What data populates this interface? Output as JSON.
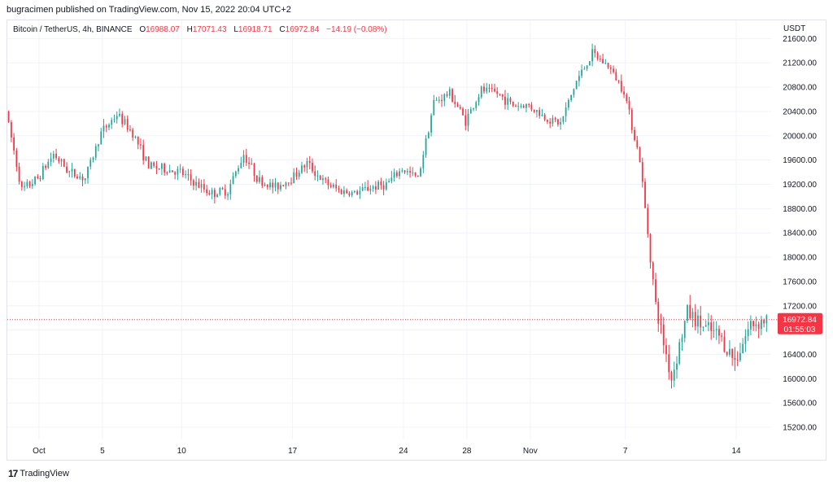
{
  "header": {
    "published_text": "bugracimen published on TradingView.com, Nov 15, 2022 20:04 UTC+2"
  },
  "legend": {
    "symbol": "Bitcoin / TetherUS, 4h, BINANCE",
    "open_label": "O",
    "open": "16988.07",
    "high_label": "H",
    "high": "17071.43",
    "low_label": "L",
    "low": "16918.71",
    "close_label": "C",
    "close": "16972.84",
    "change": "−14.19 (−0.08%)"
  },
  "footer": {
    "brand": "TradingView"
  },
  "colors": {
    "up": "#26a69a",
    "down": "#f23645",
    "grid": "#f0f3fa",
    "axis_text": "#131722"
  },
  "chart_data": {
    "type": "candlestick",
    "title": "Bitcoin / TetherUS, 4h, BINANCE",
    "currency": "USDT",
    "ylim": [
      15000,
      21900
    ],
    "y_ticks": [
      15200,
      15600,
      16000,
      16400,
      16800,
      17200,
      17600,
      18000,
      18400,
      18800,
      19200,
      19600,
      20000,
      20400,
      20800,
      21200,
      21600
    ],
    "y_tick_labels": [
      "15200.00",
      "15600.00",
      "16000.00",
      "16400.00",
      "16800.00",
      "17200.00",
      "17600.00",
      "18000.00",
      "18400.00",
      "18800.00",
      "19200.00",
      "19600.00",
      "20000.00",
      "20400.00",
      "20800.00",
      "21200.00",
      "21600.00"
    ],
    "x_labels": [
      "Oct",
      "5",
      "10",
      "17",
      "24",
      "28",
      "Nov",
      "7",
      "14"
    ],
    "x_label_dates": [
      "2022-10-01",
      "2022-10-05",
      "2022-10-10",
      "2022-10-17",
      "2022-10-24",
      "2022-10-28",
      "2022-11-01",
      "2022-11-07",
      "2022-11-14"
    ],
    "x_range": [
      "2022-09-29",
      "2022-11-16"
    ],
    "last_price": 16972.84,
    "last_price_label": "16972.84",
    "countdown_label": "01:55:03",
    "daily_path": [
      [
        "2022-09-29",
        20400
      ],
      [
        "2022-09-30",
        19100
      ],
      [
        "2022-10-01",
        19300
      ],
      [
        "2022-10-02",
        19700
      ],
      [
        "2022-10-03",
        19400
      ],
      [
        "2022-10-04",
        19300
      ],
      [
        "2022-10-05",
        20050
      ],
      [
        "2022-10-06",
        20350
      ],
      [
        "2022-10-07",
        20050
      ],
      [
        "2022-10-08",
        19500
      ],
      [
        "2022-10-09",
        19450
      ],
      [
        "2022-10-10",
        19400
      ],
      [
        "2022-10-11",
        19200
      ],
      [
        "2022-10-12",
        19050
      ],
      [
        "2022-10-13",
        19100
      ],
      [
        "2022-10-14",
        19700
      ],
      [
        "2022-10-15",
        19250
      ],
      [
        "2022-10-16",
        19150
      ],
      [
        "2022-10-17",
        19300
      ],
      [
        "2022-10-18",
        19550
      ],
      [
        "2022-10-19",
        19250
      ],
      [
        "2022-10-20",
        19100
      ],
      [
        "2022-10-21",
        19050
      ],
      [
        "2022-10-22",
        19150
      ],
      [
        "2022-10-23",
        19200
      ],
      [
        "2022-10-24",
        19450
      ],
      [
        "2022-10-25",
        19300
      ],
      [
        "2022-10-26",
        20550
      ],
      [
        "2022-10-27",
        20700
      ],
      [
        "2022-10-28",
        20250
      ],
      [
        "2022-10-29",
        20750
      ],
      [
        "2022-10-30",
        20700
      ],
      [
        "2022-10-31",
        20500
      ],
      [
        "2022-11-01",
        20500
      ],
      [
        "2022-11-02",
        20300
      ],
      [
        "2022-11-03",
        20200
      ],
      [
        "2022-11-04",
        20900
      ],
      [
        "2022-11-05",
        21350
      ],
      [
        "2022-11-06",
        21150
      ],
      [
        "2022-11-07",
        20750
      ],
      [
        "2022-11-08",
        19600
      ],
      [
        "2022-11-09",
        17200
      ],
      [
        "2022-11-10",
        16000
      ],
      [
        "2022-11-11",
        17100
      ],
      [
        "2022-11-12",
        16850
      ],
      [
        "2022-11-13",
        16700
      ],
      [
        "2022-11-14",
        16300
      ],
      [
        "2022-11-15",
        16900
      ],
      [
        "2022-11-16",
        16973
      ]
    ]
  }
}
